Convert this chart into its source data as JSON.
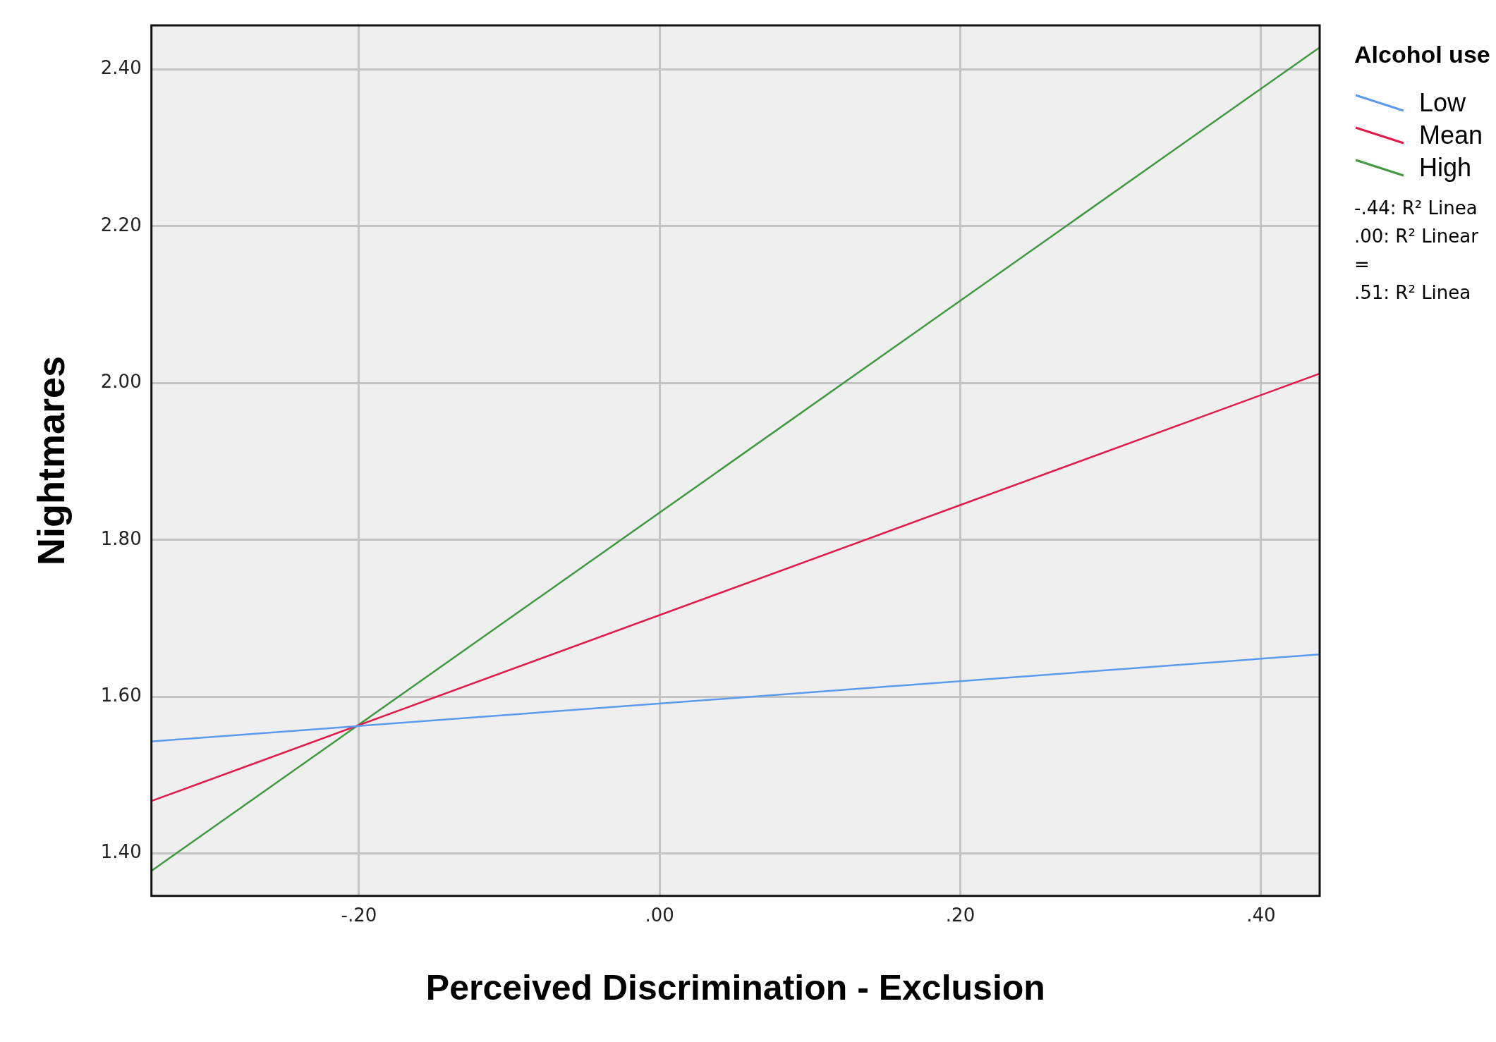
{
  "chart_data": {
    "type": "line",
    "xlabel": "Perceived Discrimination - Exclusion",
    "ylabel": "Nightmares",
    "legend_title": "Alcohol use",
    "x": [
      -0.338,
      0.439
    ],
    "series": [
      {
        "name": "Low",
        "color": "#5b9bef",
        "values": [
          1.543,
          1.654
        ]
      },
      {
        "name": "Mean",
        "color": "#e3194b",
        "values": [
          1.467,
          2.012
        ]
      },
      {
        "name": "High",
        "color": "#3d9a3d",
        "values": [
          1.378,
          2.428
        ]
      }
    ],
    "xlim": [
      -0.338,
      0.439
    ],
    "xticks": [
      {
        "value": -0.2,
        "label": "-.20"
      },
      {
        "value": 0,
        "label": ".00"
      },
      {
        "value": 0.2,
        "label": ".20"
      },
      {
        "value": 0.4,
        "label": ".40"
      }
    ],
    "ylim": [
      1.346,
      2.456
    ],
    "yticks": [
      {
        "value": 1.4,
        "label": "1.40"
      },
      {
        "value": 1.6,
        "label": "1.60"
      },
      {
        "value": 1.8,
        "label": "1.80"
      },
      {
        "value": 2.0,
        "label": "2.00"
      },
      {
        "value": 2.2,
        "label": "2.20"
      },
      {
        "value": 2.4,
        "label": "2.40"
      }
    ],
    "grid": true,
    "legend": "top right",
    "marker": "none",
    "line_style": "solid",
    "annotations": [
      "-.44: R² Linea",
      ".00: R² Linear =",
      ".51: R² Linea"
    ]
  }
}
